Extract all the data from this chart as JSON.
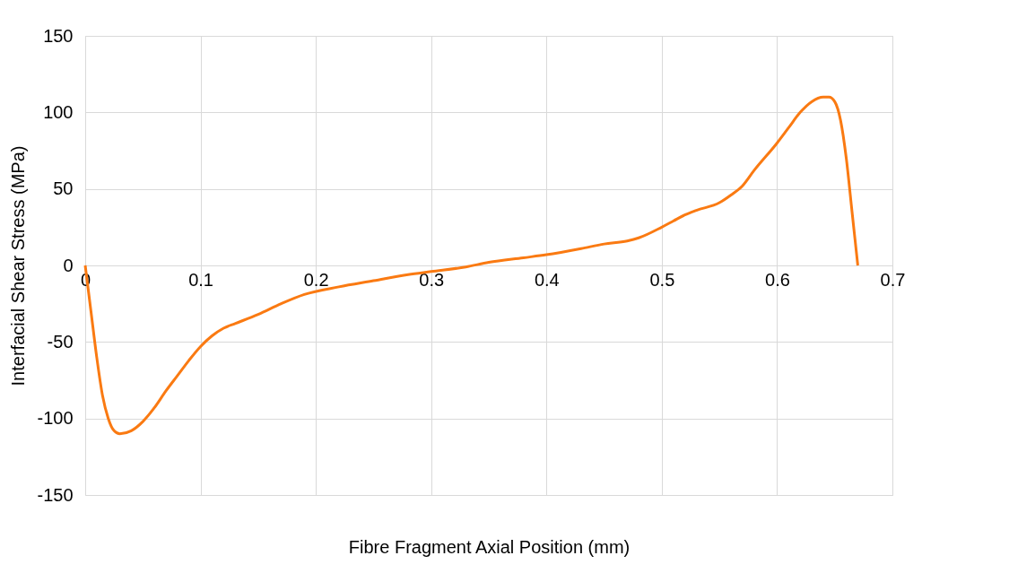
{
  "chart_data": {
    "type": "line",
    "xlabel": "Fibre Fragment Axial Position (mm)",
    "ylabel": "Interfacial Shear Stress (MPa)",
    "xlim": [
      0,
      0.7
    ],
    "xticks": [
      0,
      0.1,
      0.2,
      0.3,
      0.4,
      0.5,
      0.6,
      0.7
    ],
    "ylim": [
      -150,
      150
    ],
    "yticks": [
      -150,
      -100,
      -50,
      0,
      50,
      100,
      150
    ],
    "grid": true,
    "marker": "none",
    "line_style": "solid",
    "series": [
      {
        "color": "#fa7a12",
        "x": [
          0,
          0.005,
          0.01,
          0.015,
          0.02,
          0.025,
          0.03,
          0.04,
          0.05,
          0.06,
          0.07,
          0.08,
          0.09,
          0.1,
          0.11,
          0.12,
          0.13,
          0.15,
          0.17,
          0.19,
          0.22,
          0.25,
          0.28,
          0.3,
          0.33,
          0.35,
          0.38,
          0.4,
          0.43,
          0.45,
          0.47,
          0.48,
          0.5,
          0.51,
          0.52,
          0.53,
          0.55,
          0.56,
          0.57,
          0.58,
          0.6,
          0.61,
          0.62,
          0.63,
          0.64,
          0.645,
          0.65,
          0.655,
          0.66,
          0.665,
          0.67
        ],
        "values": [
          0,
          -30,
          -60,
          -85,
          -100,
          -108,
          -110,
          -108,
          -102,
          -93,
          -82,
          -72,
          -62,
          -53,
          -46,
          -41,
          -38,
          -32,
          -25,
          -19,
          -14,
          -10,
          -6,
          -4,
          -1,
          2,
          5,
          7,
          11,
          14,
          16,
          18,
          25,
          29,
          33,
          36,
          41,
          46,
          52,
          62,
          80,
          90,
          100,
          107,
          110,
          110,
          107,
          95,
          70,
          35,
          0
        ]
      }
    ]
  }
}
